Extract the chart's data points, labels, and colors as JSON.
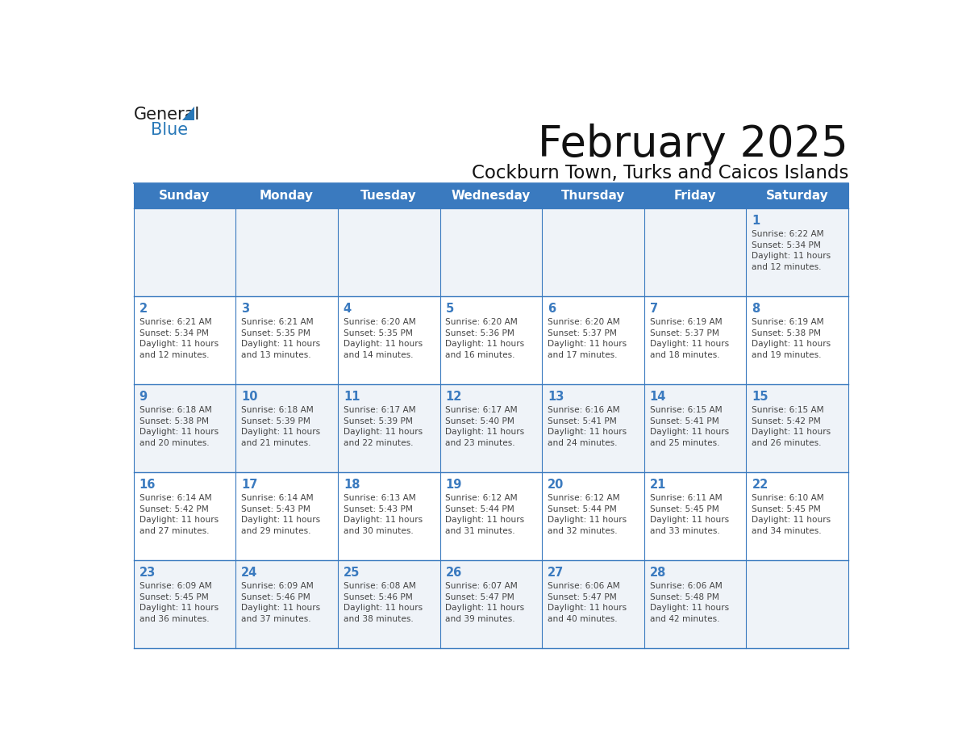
{
  "title": "February 2025",
  "subtitle": "Cockburn Town, Turks and Caicos Islands",
  "header_bg_color": "#3a7abf",
  "header_text_color": "#ffffff",
  "header_days": [
    "Sunday",
    "Monday",
    "Tuesday",
    "Wednesday",
    "Thursday",
    "Friday",
    "Saturday"
  ],
  "row0_bg": "#eff3f8",
  "row1_bg": "#ffffff",
  "row2_bg": "#eff3f8",
  "row3_bg": "#ffffff",
  "row4_bg": "#eff3f8",
  "cell_border_color": "#3a7abf",
  "day_number_color": "#3a7abf",
  "info_text_color": "#444444",
  "logo_general_color": "#1a1a1a",
  "logo_blue_color": "#2878b8",
  "calendar": [
    [
      null,
      null,
      null,
      null,
      null,
      null,
      {
        "day": 1,
        "sunrise": "6:22 AM",
        "sunset": "5:34 PM",
        "daylight_hours": "11",
        "daylight_minutes": "12"
      }
    ],
    [
      {
        "day": 2,
        "sunrise": "6:21 AM",
        "sunset": "5:34 PM",
        "daylight_hours": "11",
        "daylight_minutes": "12"
      },
      {
        "day": 3,
        "sunrise": "6:21 AM",
        "sunset": "5:35 PM",
        "daylight_hours": "11",
        "daylight_minutes": "13"
      },
      {
        "day": 4,
        "sunrise": "6:20 AM",
        "sunset": "5:35 PM",
        "daylight_hours": "11",
        "daylight_minutes": "14"
      },
      {
        "day": 5,
        "sunrise": "6:20 AM",
        "sunset": "5:36 PM",
        "daylight_hours": "11",
        "daylight_minutes": "16"
      },
      {
        "day": 6,
        "sunrise": "6:20 AM",
        "sunset": "5:37 PM",
        "daylight_hours": "11",
        "daylight_minutes": "17"
      },
      {
        "day": 7,
        "sunrise": "6:19 AM",
        "sunset": "5:37 PM",
        "daylight_hours": "11",
        "daylight_minutes": "18"
      },
      {
        "day": 8,
        "sunrise": "6:19 AM",
        "sunset": "5:38 PM",
        "daylight_hours": "11",
        "daylight_minutes": "19"
      }
    ],
    [
      {
        "day": 9,
        "sunrise": "6:18 AM",
        "sunset": "5:38 PM",
        "daylight_hours": "11",
        "daylight_minutes": "20"
      },
      {
        "day": 10,
        "sunrise": "6:18 AM",
        "sunset": "5:39 PM",
        "daylight_hours": "11",
        "daylight_minutes": "21"
      },
      {
        "day": 11,
        "sunrise": "6:17 AM",
        "sunset": "5:39 PM",
        "daylight_hours": "11",
        "daylight_minutes": "22"
      },
      {
        "day": 12,
        "sunrise": "6:17 AM",
        "sunset": "5:40 PM",
        "daylight_hours": "11",
        "daylight_minutes": "23"
      },
      {
        "day": 13,
        "sunrise": "6:16 AM",
        "sunset": "5:41 PM",
        "daylight_hours": "11",
        "daylight_minutes": "24"
      },
      {
        "day": 14,
        "sunrise": "6:15 AM",
        "sunset": "5:41 PM",
        "daylight_hours": "11",
        "daylight_minutes": "25"
      },
      {
        "day": 15,
        "sunrise": "6:15 AM",
        "sunset": "5:42 PM",
        "daylight_hours": "11",
        "daylight_minutes": "26"
      }
    ],
    [
      {
        "day": 16,
        "sunrise": "6:14 AM",
        "sunset": "5:42 PM",
        "daylight_hours": "11",
        "daylight_minutes": "27"
      },
      {
        "day": 17,
        "sunrise": "6:14 AM",
        "sunset": "5:43 PM",
        "daylight_hours": "11",
        "daylight_minutes": "29"
      },
      {
        "day": 18,
        "sunrise": "6:13 AM",
        "sunset": "5:43 PM",
        "daylight_hours": "11",
        "daylight_minutes": "30"
      },
      {
        "day": 19,
        "sunrise": "6:12 AM",
        "sunset": "5:44 PM",
        "daylight_hours": "11",
        "daylight_minutes": "31"
      },
      {
        "day": 20,
        "sunrise": "6:12 AM",
        "sunset": "5:44 PM",
        "daylight_hours": "11",
        "daylight_minutes": "32"
      },
      {
        "day": 21,
        "sunrise": "6:11 AM",
        "sunset": "5:45 PM",
        "daylight_hours": "11",
        "daylight_minutes": "33"
      },
      {
        "day": 22,
        "sunrise": "6:10 AM",
        "sunset": "5:45 PM",
        "daylight_hours": "11",
        "daylight_minutes": "34"
      }
    ],
    [
      {
        "day": 23,
        "sunrise": "6:09 AM",
        "sunset": "5:45 PM",
        "daylight_hours": "11",
        "daylight_minutes": "36"
      },
      {
        "day": 24,
        "sunrise": "6:09 AM",
        "sunset": "5:46 PM",
        "daylight_hours": "11",
        "daylight_minutes": "37"
      },
      {
        "day": 25,
        "sunrise": "6:08 AM",
        "sunset": "5:46 PM",
        "daylight_hours": "11",
        "daylight_minutes": "38"
      },
      {
        "day": 26,
        "sunrise": "6:07 AM",
        "sunset": "5:47 PM",
        "daylight_hours": "11",
        "daylight_minutes": "39"
      },
      {
        "day": 27,
        "sunrise": "6:06 AM",
        "sunset": "5:47 PM",
        "daylight_hours": "11",
        "daylight_minutes": "40"
      },
      {
        "day": 28,
        "sunrise": "6:06 AM",
        "sunset": "5:48 PM",
        "daylight_hours": "11",
        "daylight_minutes": "42"
      },
      null
    ]
  ]
}
